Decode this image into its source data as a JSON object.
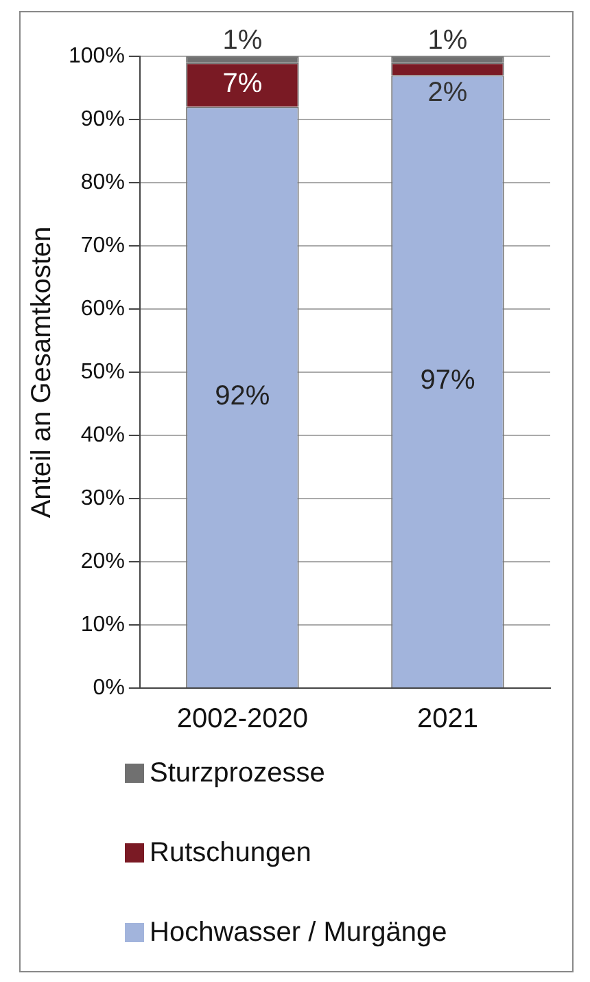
{
  "chart_data": {
    "type": "bar",
    "stacked": true,
    "categories": [
      "2002-2020",
      "2021"
    ],
    "series": [
      {
        "name": "Hochwasser / Murgänge",
        "color": "#a2b4dc",
        "values": [
          92,
          97
        ],
        "value_labels": [
          "92%",
          "97%"
        ]
      },
      {
        "name": "Rutschungen",
        "color": "#7a1a24",
        "values": [
          7,
          2
        ],
        "value_labels": [
          "7%",
          "2%"
        ]
      },
      {
        "name": "Sturzprozesse",
        "color": "#707070",
        "values": [
          1,
          1
        ],
        "value_labels": [
          "1%",
          "1%"
        ]
      }
    ],
    "ylabel": "Anteil an Gesamtkosten",
    "ylim": [
      0,
      100
    ],
    "yticks": [
      {
        "value": 0,
        "label": "0%"
      },
      {
        "value": 10,
        "label": "10%"
      },
      {
        "value": 20,
        "label": "20%"
      },
      {
        "value": 30,
        "label": "30%"
      },
      {
        "value": 40,
        "label": "40%"
      },
      {
        "value": 50,
        "label": "50%"
      },
      {
        "value": 60,
        "label": "60%"
      },
      {
        "value": 70,
        "label": "70%"
      },
      {
        "value": 80,
        "label": "80%"
      },
      {
        "value": 90,
        "label": "90%"
      },
      {
        "value": 100,
        "label": "100%"
      }
    ],
    "grid": "y",
    "legend": "bottom"
  }
}
